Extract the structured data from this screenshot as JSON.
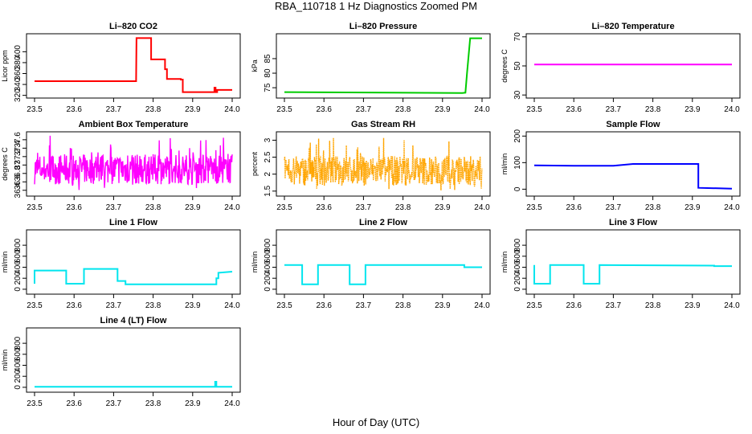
{
  "title": "RBA_110718  1 Hz Diagnostics Zoomed PM",
  "xlabel": "Hour of Day (UTC)",
  "chart_data": [
    {
      "type": "line",
      "title": "Li–820 CO2",
      "ylabel": "Licor ppm",
      "color": "#ff0000",
      "xlim": [
        23.5,
        24.0
      ],
      "ylim": [
        318,
        430
      ],
      "yticks": [
        320,
        340,
        360,
        380,
        400
      ],
      "xticks": [
        "23.5",
        "23.6",
        "23.7",
        "23.8",
        "23.9",
        "24.0"
      ],
      "series": [
        {
          "x": [
            23.5,
            23.757,
            23.757,
            23.758,
            23.795,
            23.795,
            23.83,
            23.83,
            23.835,
            23.835,
            23.87,
            23.87,
            23.875,
            23.875,
            23.955,
            23.955,
            23.958,
            23.958,
            23.962,
            23.962,
            24.0
          ],
          "y": [
            346,
            346,
            348,
            425,
            425,
            386,
            386,
            368,
            368,
            350,
            350,
            349,
            349,
            326,
            326,
            334,
            334,
            326,
            326,
            330,
            330
          ]
        }
      ]
    },
    {
      "type": "line",
      "title": "Li–820 Pressure",
      "ylabel": "kPa",
      "color": "#00cc00",
      "xlim": [
        23.5,
        24.0
      ],
      "ylim": [
        72,
        93
      ],
      "yticks": [
        75,
        80,
        85
      ],
      "xticks": [
        "23.5",
        "23.6",
        "23.7",
        "23.8",
        "23.9",
        "24.0"
      ],
      "series": [
        {
          "x": [
            23.5,
            23.95,
            23.958,
            23.962,
            23.97,
            24.0
          ],
          "y": [
            73.5,
            73.2,
            73.3,
            80,
            92,
            92
          ]
        }
      ]
    },
    {
      "type": "line",
      "title": "Li–820 Temperature",
      "ylabel": "degrees C",
      "color": "#ff00ff",
      "xlim": [
        23.5,
        24.0
      ],
      "ylim": [
        29,
        71
      ],
      "yticks": [
        30,
        50,
        70
      ],
      "xticks": [
        "23.5",
        "23.6",
        "23.7",
        "23.8",
        "23.9",
        "24.0"
      ],
      "series": [
        {
          "x": [
            23.5,
            24.0
          ],
          "y": [
            51,
            51
          ]
        }
      ]
    },
    {
      "type": "line",
      "title": "Ambient Box Temperature",
      "ylabel": "degrees C",
      "color": "#ff00ff",
      "xlim": [
        23.5,
        24.0
      ],
      "ylim": [
        36.3,
        37.75
      ],
      "yticks": [
        36.4,
        36.6,
        36.8,
        37.0,
        37.2,
        37.4,
        37.6
      ],
      "xticks": [
        "23.5",
        "23.6",
        "23.7",
        "23.8",
        "23.9",
        "24.0"
      ],
      "series": [
        {
          "x": [
            23.5,
            24.0
          ],
          "y": [
            36.9,
            36.9
          ],
          "noise_range": [
            36.4,
            37.7
          ]
        }
      ]
    },
    {
      "type": "line",
      "title": "Gas Stream RH",
      "ylabel": "percent",
      "color": "#ffa500",
      "xlim": [
        23.5,
        24.0
      ],
      "ylim": [
        1.4,
        3.2
      ],
      "yticks": [
        1.5,
        2.0,
        2.5,
        3.0
      ],
      "xticks": [
        "23.5",
        "23.6",
        "23.7",
        "23.8",
        "23.9",
        "24.0"
      ],
      "series": [
        {
          "x": [
            23.5,
            24.0
          ],
          "y": [
            2.1,
            2.1
          ],
          "noise_range": [
            1.5,
            3.1
          ]
        }
      ]
    },
    {
      "type": "line",
      "title": "Sample Flow",
      "ylabel": "ml/min",
      "color": "#0000ff",
      "xlim": [
        23.5,
        24.0
      ],
      "ylim": [
        -20,
        210
      ],
      "yticks": [
        0,
        100,
        200
      ],
      "xticks": [
        "23.5",
        "23.6",
        "23.7",
        "23.8",
        "23.9",
        "24.0"
      ],
      "series": [
        {
          "x": [
            23.5,
            23.6,
            23.7,
            23.75,
            23.8,
            23.915,
            23.915,
            24.0
          ],
          "y": [
            90,
            88,
            88,
            95,
            95,
            95,
            5,
            2
          ]
        }
      ]
    },
    {
      "type": "line",
      "title": "Line 1 Flow",
      "ylabel": "ml/min",
      "color": "#00e5ee",
      "xlim": [
        23.5,
        24.0
      ],
      "ylim": [
        -60,
        1050
      ],
      "yticks": [
        0,
        200,
        400,
        600,
        800
      ],
      "xticks": [
        "23.5",
        "23.6",
        "23.7",
        "23.8",
        "23.9",
        "24.0"
      ],
      "series": [
        {
          "x": [
            23.5,
            23.5,
            23.58,
            23.58,
            23.625,
            23.625,
            23.71,
            23.71,
            23.73,
            23.73,
            23.96,
            23.96,
            23.965,
            23.965,
            24.0
          ],
          "y": [
            100,
            340,
            340,
            100,
            100,
            370,
            370,
            150,
            150,
            90,
            90,
            200,
            200,
            300,
            320
          ]
        }
      ]
    },
    {
      "type": "line",
      "title": "Line 2 Flow",
      "ylabel": "ml/min",
      "color": "#00e5ee",
      "xlim": [
        23.5,
        24.0
      ],
      "ylim": [
        -60,
        1050
      ],
      "yticks": [
        0,
        200,
        400,
        600,
        800
      ],
      "xticks": [
        "23.5",
        "23.6",
        "23.7",
        "23.8",
        "23.9",
        "24.0"
      ],
      "series": [
        {
          "x": [
            23.5,
            23.545,
            23.545,
            23.585,
            23.585,
            23.665,
            23.665,
            23.705,
            23.705,
            23.955,
            23.955,
            24.0
          ],
          "y": [
            440,
            440,
            90,
            90,
            440,
            440,
            90,
            90,
            440,
            440,
            400,
            400
          ]
        }
      ]
    },
    {
      "type": "line",
      "title": "Line 3 Flow",
      "ylabel": "ml/min",
      "color": "#00e5ee",
      "xlim": [
        23.5,
        24.0
      ],
      "ylim": [
        -60,
        1050
      ],
      "yticks": [
        0,
        200,
        400,
        600,
        800
      ],
      "xticks": [
        "23.5",
        "23.6",
        "23.7",
        "23.8",
        "23.9",
        "24.0"
      ],
      "series": [
        {
          "x": [
            23.5,
            23.5,
            23.54,
            23.54,
            23.625,
            23.625,
            23.665,
            23.665,
            23.955,
            23.955,
            24.0
          ],
          "y": [
            440,
            100,
            100,
            440,
            440,
            100,
            100,
            440,
            430,
            420,
            420
          ]
        }
      ]
    },
    {
      "type": "line",
      "title": "Line 4 (LT) Flow",
      "ylabel": "ml/min",
      "color": "#00e5ee",
      "xlim": [
        23.5,
        24.0
      ],
      "ylim": [
        -60,
        1050
      ],
      "yticks": [
        0,
        200,
        400,
        600,
        800
      ],
      "xticks": [
        "23.5",
        "23.6",
        "23.7",
        "23.8",
        "23.9",
        "24.0"
      ],
      "series": [
        {
          "x": [
            23.5,
            23.957,
            23.957,
            23.96,
            23.96,
            24.0
          ],
          "y": [
            10,
            10,
            100,
            100,
            10,
            10
          ]
        }
      ]
    }
  ]
}
